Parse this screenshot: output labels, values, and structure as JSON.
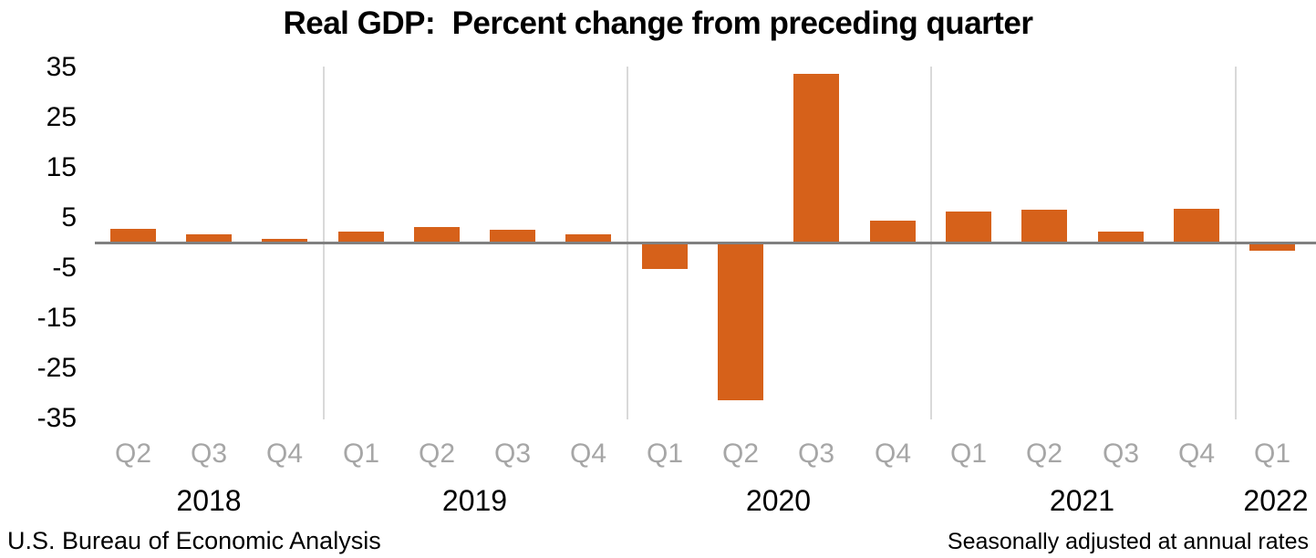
{
  "title": "Real GDP:  Percent change from preceding quarter",
  "footer": {
    "left": "U.S. Bureau of Economic Analysis",
    "right": "Seasonally adjusted at annual rates"
  },
  "colors": {
    "bar": "#d6611a",
    "zero_axis": "#808080",
    "year_separator": "#d9d9d9",
    "quarter_label": "#a6a6a6",
    "text": "#000000",
    "background": "#ffffff"
  },
  "chart_data": {
    "type": "bar",
    "title": "Real GDP:  Percent change from preceding quarter",
    "ylabel": "",
    "xlabel": "",
    "units": "percent change at annual rate",
    "categories": [
      "Q2",
      "Q3",
      "Q4",
      "Q1",
      "Q2",
      "Q3",
      "Q4",
      "Q1",
      "Q2",
      "Q3",
      "Q4",
      "Q1",
      "Q2",
      "Q3",
      "Q4",
      "Q1"
    ],
    "year_groups": [
      {
        "label": "2018",
        "quarters": 3
      },
      {
        "label": "2019",
        "quarters": 4
      },
      {
        "label": "2020",
        "quarters": 4
      },
      {
        "label": "2021",
        "quarters": 4
      },
      {
        "label": "2022",
        "quarters": 1
      }
    ],
    "values": [
      2.9,
      1.9,
      0.9,
      2.4,
      3.2,
      2.8,
      1.9,
      -5.1,
      -31.2,
      33.8,
      4.5,
      6.3,
      6.7,
      2.3,
      6.9,
      -1.4
    ],
    "ylim": [
      -35,
      35
    ],
    "yticks": [
      35,
      25,
      15,
      5,
      -5,
      -15,
      -25,
      -35
    ],
    "grid": "vertical year separators only",
    "legend": "none",
    "source_note": "U.S. Bureau of Economic Analysis",
    "adjustment_note": "Seasonally adjusted at annual rates"
  }
}
